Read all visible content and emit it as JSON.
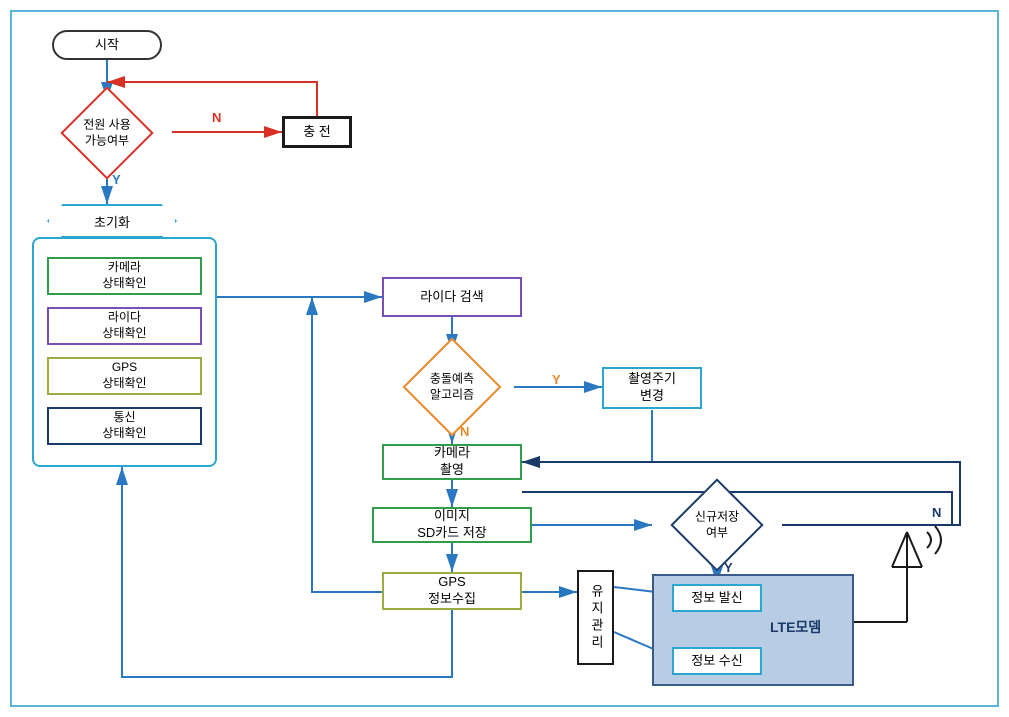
{
  "colors": {
    "frame": "#5bb5d9",
    "black": "#1a1a1a",
    "red": "#d93025",
    "blue": "#2b78c2",
    "cyan": "#2aa7d1",
    "green": "#2e9e4a",
    "purple": "#7a4fb5",
    "olive": "#9aad3e",
    "navy": "#1a3a6a",
    "orange": "#e88a2a",
    "ltefill": "#b8cce4"
  },
  "nodes": {
    "start": "시작",
    "power_check": "전원 사용\n가능여부",
    "charge": "충 전",
    "init": "초기화",
    "camera_status": "카메라\n상태확인",
    "lidar_status": "라이다\n상태확인",
    "gps_status": "GPS\n상태확인",
    "comm_status": "통신\n상태확인",
    "lidar_search": "라이다 검색",
    "collision_algo": "충돌예측\n알고리즘",
    "cycle_change": "촬영주기\n변경",
    "camera_shoot": "카메라\n촬영",
    "sd_save": "이미지\nSD카드 저장",
    "new_save_check": "신규저장\n여부",
    "gps_collect": "GPS\n정보수집",
    "maintain": "유지관리",
    "info_send": "정보 발신",
    "info_recv": "정보 수신",
    "lte": "LTE모뎀"
  },
  "labels": {
    "Y": "Y",
    "N": "N"
  }
}
